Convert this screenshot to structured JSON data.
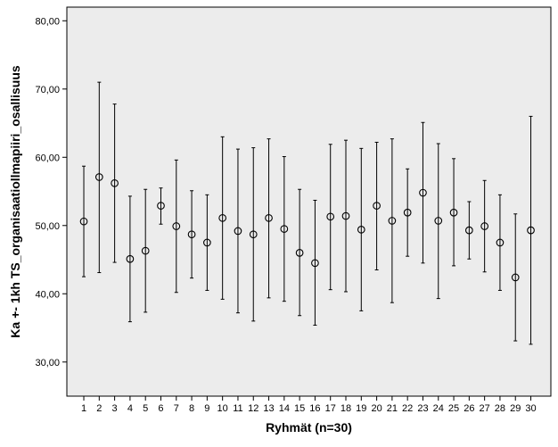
{
  "chart_data": {
    "type": "errorbar",
    "xlabel": "Ryhmät (n=30)",
    "ylabel": "Ka +- 1kh TS_organisaatiollmapiiri_osallisuus",
    "ylim": [
      25,
      82
    ],
    "yticks": [
      30,
      40,
      50,
      60,
      70,
      80
    ],
    "ytick_labels": [
      "30,00",
      "40,00",
      "50,00",
      "60,00",
      "70,00",
      "80,00"
    ],
    "grid": false,
    "plot_background": "#ececec",
    "categories": [
      "1",
      "2",
      "3",
      "4",
      "5",
      "6",
      "7",
      "8",
      "9",
      "10",
      "11",
      "12",
      "13",
      "14",
      "15",
      "16",
      "17",
      "18",
      "19",
      "20",
      "21",
      "22",
      "23",
      "24",
      "25",
      "26",
      "27",
      "28",
      "29",
      "30"
    ],
    "means": [
      50.6,
      57.1,
      56.2,
      45.1,
      46.3,
      52.9,
      49.9,
      48.7,
      47.5,
      51.1,
      49.2,
      48.7,
      51.1,
      49.5,
      46.0,
      44.5,
      51.3,
      51.4,
      49.4,
      52.9,
      50.7,
      51.9,
      54.8,
      50.7,
      51.9,
      49.3,
      49.9,
      47.5,
      42.4,
      49.3
    ],
    "lower": [
      42.5,
      43.1,
      44.6,
      35.9,
      37.3,
      50.2,
      40.2,
      42.3,
      40.5,
      39.2,
      37.2,
      36.0,
      39.4,
      38.9,
      36.8,
      35.4,
      40.6,
      40.3,
      37.5,
      43.5,
      38.7,
      45.5,
      44.5,
      39.3,
      44.1,
      45.1,
      43.2,
      40.5,
      33.1,
      32.6
    ],
    "upper": [
      58.7,
      71.0,
      67.8,
      54.3,
      55.3,
      55.5,
      59.6,
      55.1,
      54.5,
      63.0,
      61.2,
      61.4,
      62.7,
      60.1,
      55.3,
      53.7,
      61.9,
      62.5,
      61.3,
      62.2,
      62.7,
      58.3,
      65.1,
      62.0,
      59.8,
      53.5,
      56.6,
      54.5,
      51.7,
      66.0
    ]
  }
}
